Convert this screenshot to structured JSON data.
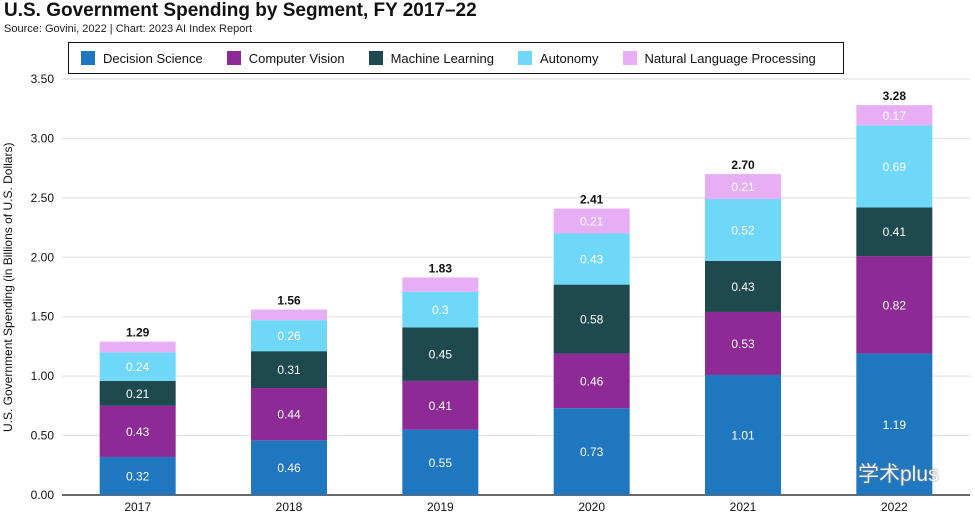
{
  "chart_data": {
    "type": "bar",
    "stacked": true,
    "title": "U.S. Government Spending by Segment, FY 2017–22",
    "subtitle": "Source: Govini, 2022 | Chart: 2023 AI Index Report",
    "ylabel": "U.S. Government Spending (in Billions of U.S. Dollars)",
    "xlabel": "",
    "ylim": [
      0,
      3.5
    ],
    "yticks": [
      "0.00",
      "0.50",
      "1.00",
      "1.50",
      "2.00",
      "2.50",
      "3.00",
      "3.50"
    ],
    "grid": true,
    "legend_position": "top",
    "categories": [
      "2017",
      "2018",
      "2019",
      "2020",
      "2021",
      "2022"
    ],
    "totals": [
      "1.29",
      "1.56",
      "1.83",
      "2.41",
      "2.70",
      "3.28"
    ],
    "series": [
      {
        "name": "Decision Science",
        "color": "#1f77c0",
        "values": [
          0.32,
          0.46,
          0.55,
          0.73,
          1.01,
          1.19
        ],
        "labels": [
          "0.32",
          "0.46",
          "0.55",
          "0.73",
          "1.01",
          "1.19"
        ]
      },
      {
        "name": "Computer Vision",
        "color": "#8e2a96",
        "values": [
          0.43,
          0.44,
          0.41,
          0.46,
          0.53,
          0.82
        ],
        "labels": [
          "0.43",
          "0.44",
          "0.41",
          "0.46",
          "0.53",
          "0.82"
        ]
      },
      {
        "name": "Machine Learning",
        "color": "#1e4a4f",
        "values": [
          0.21,
          0.31,
          0.45,
          0.58,
          0.43,
          0.41
        ],
        "labels": [
          "0.21",
          "0.31",
          "0.45",
          "0.58",
          "0.43",
          "0.41"
        ]
      },
      {
        "name": "Autonomy",
        "color": "#6fd7f7",
        "values": [
          0.24,
          0.26,
          0.3,
          0.43,
          0.52,
          0.69
        ],
        "labels": [
          "0.24",
          "0.26",
          "0.3",
          "0.43",
          "0.52",
          "0.69"
        ]
      },
      {
        "name": "Natural Language Processing",
        "color": "#e7aef5",
        "values": [
          0.09,
          0.09,
          0.12,
          0.21,
          0.21,
          0.17
        ],
        "labels": [
          "",
          "",
          "",
          "0.21",
          "0.21",
          "0.17"
        ]
      }
    ]
  },
  "watermark": {
    "text": "学术plus",
    "icon": "wechat-icon"
  }
}
